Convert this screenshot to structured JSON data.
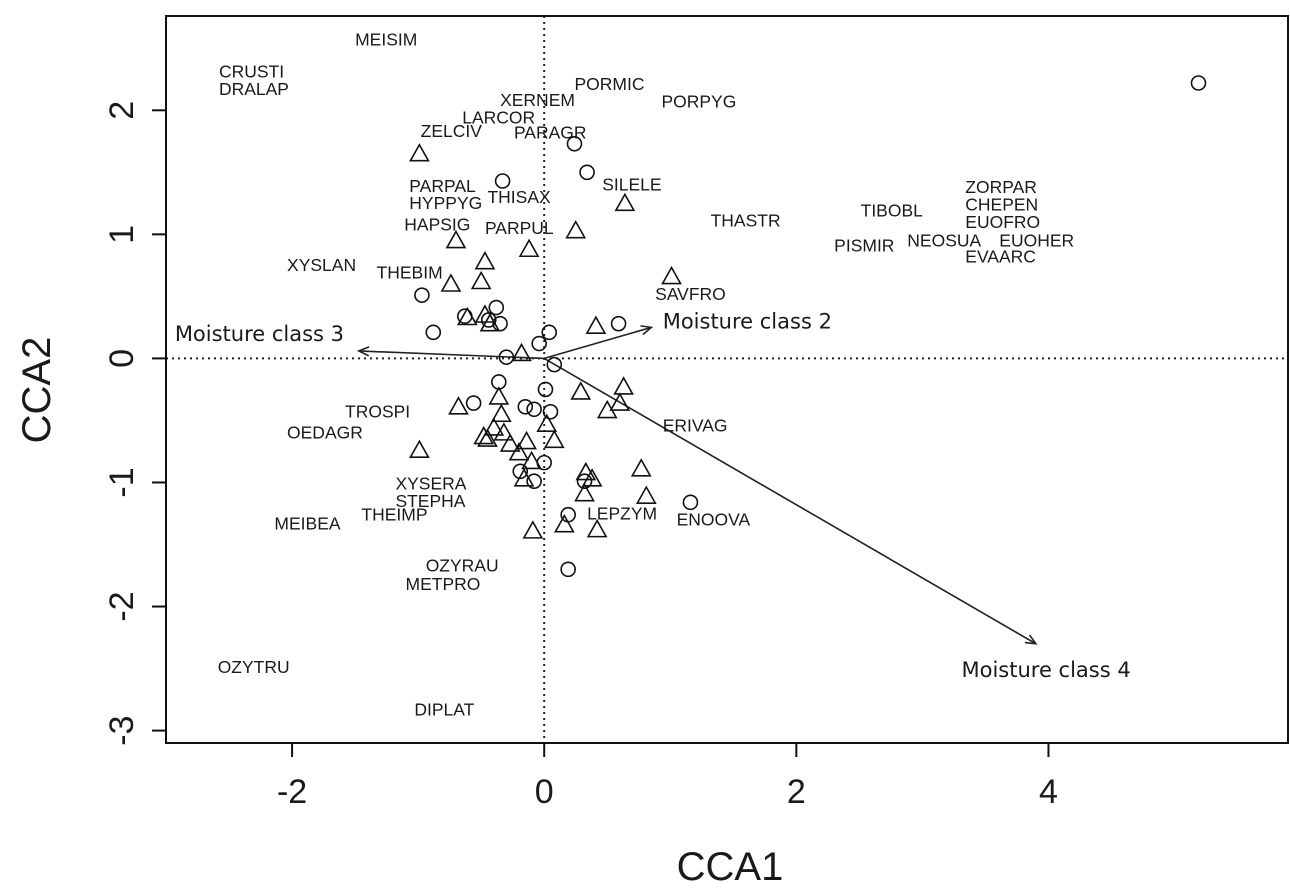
{
  "chart_data": {
    "type": "scatter",
    "title": "",
    "xlabel": "CCA1",
    "ylabel": "CCA2",
    "xlim": [
      -3.0,
      5.9
    ],
    "ylim": [
      -3.1,
      2.76
    ],
    "x_ticks": [
      -2,
      0,
      2,
      4
    ],
    "y_ticks": [
      -3,
      -2,
      -1,
      0,
      1,
      2
    ],
    "reference_lines": {
      "x": 0,
      "y": 0,
      "style": "dotted"
    },
    "sites_circle": [
      [
        5.19,
        2.22
      ],
      [
        0.24,
        1.73
      ],
      [
        0.34,
        1.5
      ],
      [
        -0.33,
        1.43
      ],
      [
        -0.97,
        0.51
      ],
      [
        -0.88,
        0.21
      ],
      [
        -0.63,
        0.34
      ],
      [
        -0.44,
        0.31
      ],
      [
        -0.38,
        0.41
      ],
      [
        -0.35,
        0.28
      ],
      [
        -0.3,
        0.01
      ],
      [
        0.04,
        0.21
      ],
      [
        -0.04,
        0.12
      ],
      [
        0.59,
        0.28
      ],
      [
        0.08,
        -0.05
      ],
      [
        -0.36,
        -0.19
      ],
      [
        -0.56,
        -0.36
      ],
      [
        0.01,
        -0.25
      ],
      [
        -0.15,
        -0.39
      ],
      [
        -0.08,
        -0.41
      ],
      [
        0.05,
        -0.43
      ],
      [
        -0.19,
        -0.91
      ],
      [
        -0.08,
        -0.99
      ],
      [
        0.0,
        -0.84
      ],
      [
        0.32,
        -0.99
      ],
      [
        0.19,
        -1.26
      ],
      [
        1.16,
        -1.16
      ],
      [
        0.19,
        -1.7
      ]
    ],
    "sites_triangle": [
      [
        -0.99,
        1.65
      ],
      [
        -0.7,
        0.95
      ],
      [
        0.64,
        1.25
      ],
      [
        0.25,
        1.03
      ],
      [
        -0.12,
        0.88
      ],
      [
        -0.47,
        0.78
      ],
      [
        -0.5,
        0.62
      ],
      [
        -0.74,
        0.6
      ],
      [
        1.01,
        0.66
      ],
      [
        -0.47,
        0.35
      ],
      [
        -0.61,
        0.33
      ],
      [
        -0.43,
        0.28
      ],
      [
        0.41,
        0.26
      ],
      [
        -0.18,
        0.04
      ],
      [
        -0.68,
        -0.39
      ],
      [
        0.29,
        -0.27
      ],
      [
        0.63,
        -0.23
      ],
      [
        0.6,
        -0.36
      ],
      [
        0.5,
        -0.42
      ],
      [
        -0.48,
        -0.63
      ],
      [
        -0.36,
        -0.31
      ],
      [
        -0.34,
        -0.45
      ],
      [
        -0.4,
        -0.56
      ],
      [
        -0.32,
        -0.6
      ],
      [
        -0.45,
        -0.65
      ],
      [
        -0.27,
        -0.69
      ],
      [
        -0.14,
        -0.67
      ],
      [
        0.02,
        -0.53
      ],
      [
        0.08,
        -0.66
      ],
      [
        -0.2,
        -0.76
      ],
      [
        -0.1,
        -0.83
      ],
      [
        -0.16,
        -0.97
      ],
      [
        0.33,
        -0.92
      ],
      [
        0.38,
        -0.97
      ],
      [
        0.77,
        -0.89
      ],
      [
        0.32,
        -1.09
      ],
      [
        0.81,
        -1.11
      ],
      [
        -0.99,
        -0.74
      ],
      [
        0.16,
        -1.34
      ],
      [
        -0.09,
        -1.39
      ],
      [
        0.42,
        -1.38
      ]
    ],
    "species_labels": [
      {
        "text": "MEISIM",
        "x": -1.5,
        "y": 2.56
      },
      {
        "text": "CRUSTI",
        "x": -2.58,
        "y": 2.3
      },
      {
        "text": "DRALAP",
        "x": -2.58,
        "y": 2.16
      },
      {
        "text": "PORMIC",
        "x": 0.24,
        "y": 2.2
      },
      {
        "text": "XERNEM",
        "x": -0.35,
        "y": 2.07
      },
      {
        "text": "PORPYG",
        "x": 0.93,
        "y": 2.06
      },
      {
        "text": "LARCOR",
        "x": -0.65,
        "y": 1.93
      },
      {
        "text": "PARAGR",
        "x": -0.24,
        "y": 1.81
      },
      {
        "text": "ZELCIV",
        "x": -0.98,
        "y": 1.82
      },
      {
        "text": "SILELE",
        "x": 0.46,
        "y": 1.39
      },
      {
        "text": "PARPAL",
        "x": -1.07,
        "y": 1.38
      },
      {
        "text": "THISAX",
        "x": -0.45,
        "y": 1.29
      },
      {
        "text": "HYPPYG",
        "x": -1.07,
        "y": 1.24
      },
      {
        "text": "THASTR",
        "x": 1.32,
        "y": 1.1
      },
      {
        "text": "TIBOBL",
        "x": 2.51,
        "y": 1.18
      },
      {
        "text": "ZORPAR",
        "x": 3.34,
        "y": 1.37
      },
      {
        "text": "CHEPEN",
        "x": 3.34,
        "y": 1.23
      },
      {
        "text": "EUOFRO",
        "x": 3.34,
        "y": 1.09
      },
      {
        "text": "HAPSIG",
        "x": -1.11,
        "y": 1.07
      },
      {
        "text": "PARPUL",
        "x": -0.47,
        "y": 1.04
      },
      {
        "text": "EUOHER",
        "x": 3.61,
        "y": 0.94
      },
      {
        "text": "NEOSUA",
        "x": 2.88,
        "y": 0.94
      },
      {
        "text": "PISMIR",
        "x": 2.3,
        "y": 0.9
      },
      {
        "text": "EVAARC",
        "x": 3.34,
        "y": 0.81
      },
      {
        "text": "XYSLAN",
        "x": -2.04,
        "y": 0.74
      },
      {
        "text": "THEBIM",
        "x": -1.33,
        "y": 0.68
      },
      {
        "text": "SAVFRO",
        "x": 0.88,
        "y": 0.51
      },
      {
        "text": "TROSPI",
        "x": -1.58,
        "y": -0.44
      },
      {
        "text": "ERIVAG",
        "x": 0.94,
        "y": -0.55
      },
      {
        "text": "OEDAGR",
        "x": -2.04,
        "y": -0.61
      },
      {
        "text": "XYSERA",
        "x": -1.18,
        "y": -1.02
      },
      {
        "text": "STEPHA",
        "x": -1.18,
        "y": -1.16
      },
      {
        "text": "THEIMP",
        "x": -1.45,
        "y": -1.27
      },
      {
        "text": "LEPZYM",
        "x": 0.34,
        "y": -1.26
      },
      {
        "text": "MEIBEA",
        "x": -2.14,
        "y": -1.34
      },
      {
        "text": "ENOOVA",
        "x": 1.05,
        "y": -1.31
      },
      {
        "text": "OZYRAU",
        "x": -0.94,
        "y": -1.68
      },
      {
        "text": "METPRO",
        "x": -1.1,
        "y": -1.83
      },
      {
        "text": "OZYTRU",
        "x": -2.59,
        "y": -2.5
      },
      {
        "text": "DIPLAT",
        "x": -1.03,
        "y": -2.84
      }
    ],
    "vectors": [
      {
        "name": "Moisture class 3",
        "x": -1.47,
        "y": 0.06,
        "label_x": -2.93,
        "label_y": 0.14
      },
      {
        "name": "Moisture class 2",
        "x": 0.85,
        "y": 0.25,
        "label_x": 0.94,
        "label_y": 0.24
      },
      {
        "name": "Moisture class 4",
        "x": 3.9,
        "y": -2.3,
        "label_x": 3.31,
        "label_y": -2.57
      }
    ]
  }
}
